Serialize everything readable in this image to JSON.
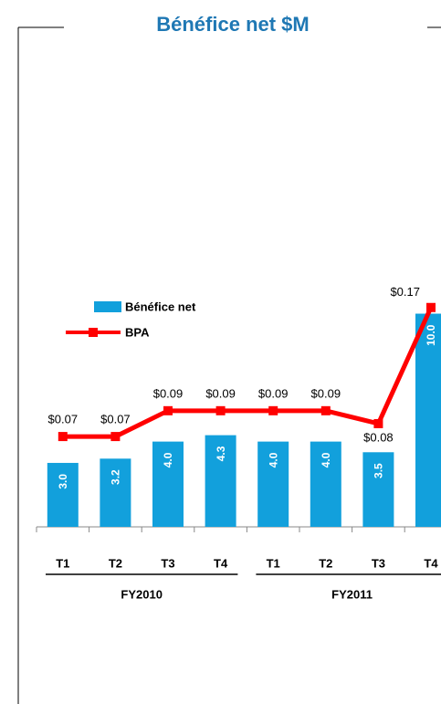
{
  "chart_data": {
    "type": "bar-line",
    "title": "Bénéfice net $M",
    "categories": [
      "T1",
      "T2",
      "T3",
      "T4",
      "T1",
      "T2",
      "T3",
      "T4"
    ],
    "groups": [
      "FY2010",
      "FY2011"
    ],
    "series": [
      {
        "name": "Bénéfice net",
        "type": "bar",
        "color": "#12a0dc",
        "values": [
          3.0,
          3.2,
          4.0,
          4.3,
          4.0,
          4.0,
          3.5,
          10.0
        ],
        "value_labels": [
          "3.0",
          "3.2",
          "4.0",
          "4.3",
          "4.0",
          "4.0",
          "3.5",
          "10.0"
        ]
      },
      {
        "name": "BPA",
        "type": "line",
        "axis": "y2",
        "color": "#ff0000",
        "values": [
          0.07,
          0.07,
          0.09,
          0.09,
          0.09,
          0.09,
          0.08,
          0.17
        ],
        "value_labels": [
          "$0.07",
          "$0.07",
          "$0.09",
          "$0.09",
          "$0.09",
          "$0.09",
          "$0.08",
          "$0.17"
        ]
      }
    ],
    "ylim": [
      0,
      23
    ],
    "y2lim": [
      0,
      0.38
    ],
    "legend": "upper left"
  }
}
